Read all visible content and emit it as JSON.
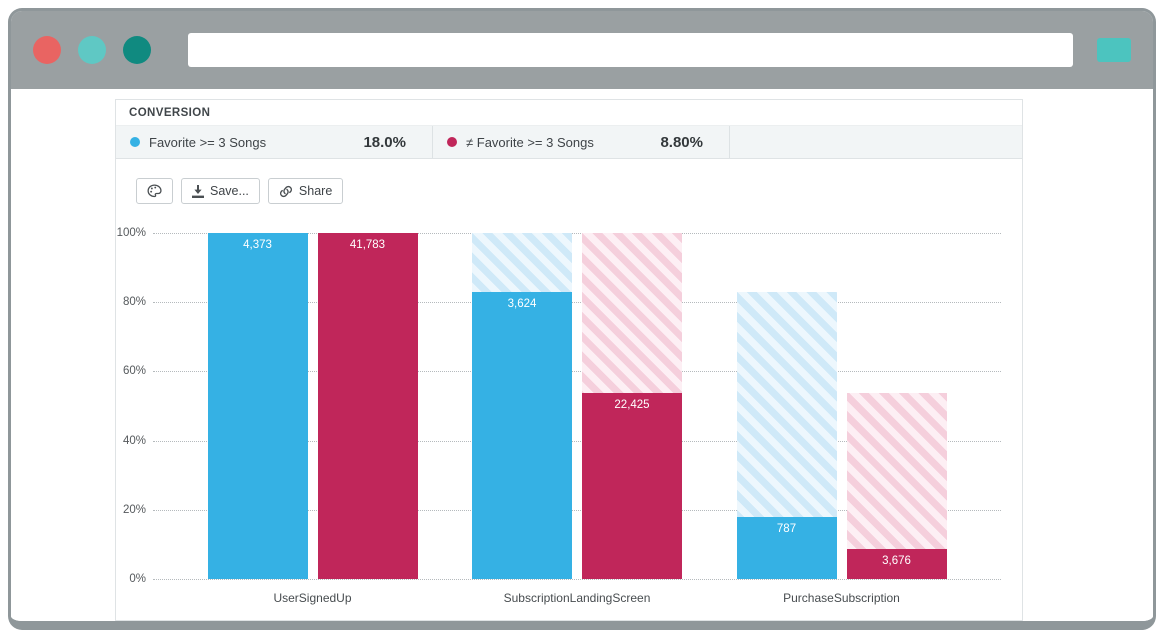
{
  "browser": {
    "url_value": "",
    "traffic_lights": [
      "close",
      "minimize",
      "zoom"
    ],
    "action_button_color": "#4cc4bf",
    "chrome_color": "#9aa0a2"
  },
  "panel": {
    "header": "CONVERSION",
    "legend": [
      {
        "label": "Favorite >= 3 Songs",
        "percent": "18.0%",
        "color": "#35b1e4"
      },
      {
        "label": "≠ Favorite >= 3 Songs",
        "percent": "8.80%",
        "color": "#c0265a"
      }
    ],
    "toolbar": {
      "save_label": "Save...",
      "share_label": "Share"
    }
  },
  "chart_data": {
    "type": "bar",
    "title": "CONVERSION",
    "categories": [
      "UserSignedUp",
      "SubscriptionLandingScreen",
      "PurchaseSubscription"
    ],
    "series": [
      {
        "name": "Favorite >= 3 Songs",
        "color": "#35b1e4",
        "hatch1": "#cfe9f8",
        "hatch2": "#edf7fd",
        "counts": [
          4373,
          3624,
          787
        ],
        "labels": [
          "4,373",
          "3,624",
          "787"
        ],
        "percents": [
          100,
          82.9,
          18.0
        ]
      },
      {
        "name": "≠ Favorite >= 3 Songs",
        "color": "#c0265a",
        "hatch1": "#f5cfdc",
        "hatch2": "#fdeff4",
        "counts": [
          41783,
          22425,
          3676
        ],
        "labels": [
          "41,783",
          "22,425",
          "3,676"
        ],
        "percents": [
          100,
          53.7,
          8.8
        ]
      }
    ],
    "ticks": [
      0,
      20,
      40,
      60,
      80,
      100
    ],
    "ylim": [
      0,
      100
    ],
    "ytick_suffix": "%",
    "grid": true,
    "legend_position": "top"
  }
}
